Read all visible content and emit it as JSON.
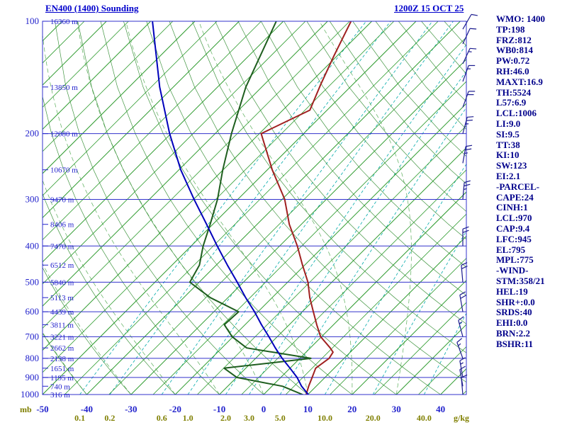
{
  "header": {
    "title": "EN400 (1400) Sounding",
    "datetime": "1200Z 15 OCT 25"
  },
  "axes": {
    "pressure_unit": "mb",
    "mixing_unit": "g/kg",
    "pressure_labels": [
      100,
      200,
      300,
      400,
      500,
      600,
      700,
      800,
      900,
      1000
    ],
    "temp_labels": [
      -50,
      -40,
      -30,
      -20,
      -10,
      0,
      10,
      20,
      30,
      40
    ],
    "mixing_labels": [
      "0.1",
      "0.2",
      "0.6",
      "1.0",
      "2.0",
      "3.0",
      "5.0",
      "10.0",
      "20.0",
      "40.0"
    ],
    "height_labels": [
      {
        "p": 100,
        "label": "16360 m"
      },
      {
        "p": 150,
        "label": "13850 m"
      },
      {
        "p": 200,
        "label": "12080 m"
      },
      {
        "p": 250,
        "label": "10670 m"
      },
      {
        "p": 300,
        "label": "9470 m"
      },
      {
        "p": 350,
        "label": "8406 m"
      },
      {
        "p": 400,
        "label": "7470 m"
      },
      {
        "p": 450,
        "label": "6512 m"
      },
      {
        "p": 500,
        "label": "5840 m"
      },
      {
        "p": 550,
        "label": "5113 m"
      },
      {
        "p": 600,
        "label": "4439 m"
      },
      {
        "p": 650,
        "label": "3811 m"
      },
      {
        "p": 700,
        "label": "3221 m"
      },
      {
        "p": 750,
        "label": "2662 m"
      },
      {
        "p": 800,
        "label": "2138 m"
      },
      {
        "p": 850,
        "label": "1651 m"
      },
      {
        "p": 900,
        "label": "1195 m"
      },
      {
        "p": 950,
        "label": "740 m"
      },
      {
        "p": 1000,
        "label": "316 m"
      }
    ]
  },
  "right_panel": {
    "items": [
      "WMO: 1400",
      "TP:198",
      "FRZ:812",
      "WB0:814",
      "PW:0.72",
      "RH:46.0",
      "MAXT:16.9",
      "TH:5524",
      "L57:6.9",
      "LCL:1006",
      "LI:9.0",
      "SI:9.5",
      "TT:38",
      "KI:10",
      "SW:123",
      "EI:2.1",
      "-PARCEL-",
      "CAPE:24",
      "CINH:1",
      "LCL:970",
      "CAP:9.4",
      "LFC:945",
      "EL:795",
      "MPL:775",
      "-WIND-",
      "STM:358/21",
      "HEL:19",
      "SHR+:0.0",
      "SRDS:40",
      "EHI:0.0",
      "BRN:2.2",
      "BSHR:11"
    ]
  },
  "chart_data": {
    "type": "skewt-sounding",
    "title": "EN400 (1400) Sounding",
    "valid_time": "1200Z 15 OCT 25",
    "pressure_axis_mb": [
      100,
      1000
    ],
    "temp_axis_c": [
      -50,
      46
    ],
    "colors": {
      "frame": "#3333cc",
      "pressure_line": "#3333cc",
      "isotherm": "#2e9b2e",
      "dry_adiabat": "#2e8b2e",
      "moist_adiabat": "#3da03d",
      "mixing_ratio": "#00aaaa",
      "temperature": "#a02020",
      "dewpoint": "#1e5e1e",
      "parcel": "#0000bb",
      "wind": "#1b1b8e",
      "text_blue": "#2222cc",
      "text_navy": "#00008b",
      "text_olive": "#7f7f00"
    },
    "series": [
      {
        "name": "temperature",
        "color": "#a02020",
        "points": [
          [
            1000,
            9.6
          ],
          [
            950,
            8.3
          ],
          [
            900,
            7.1
          ],
          [
            850,
            5.8
          ],
          [
            800,
            6.6
          ],
          [
            770,
            6.1
          ],
          [
            750,
            4.5
          ],
          [
            700,
            -0.2
          ],
          [
            650,
            -3.8
          ],
          [
            600,
            -7.5
          ],
          [
            550,
            -11.5
          ],
          [
            500,
            -15.4
          ],
          [
            450,
            -20.5
          ],
          [
            400,
            -26.0
          ],
          [
            350,
            -32.7
          ],
          [
            300,
            -39.4
          ],
          [
            250,
            -48.9
          ],
          [
            200,
            -59.6
          ],
          [
            173,
            -53.9
          ],
          [
            148,
            -57.2
          ],
          [
            124,
            -60.7
          ],
          [
            100,
            -64.7
          ]
        ]
      },
      {
        "name": "dewpoint",
        "color": "#1e5e1e",
        "points": [
          [
            1000,
            8.8
          ],
          [
            950,
            2.4
          ],
          [
            900,
            -9.9
          ],
          [
            850,
            -14.9
          ],
          [
            800,
            2.5
          ],
          [
            750,
            -14.4
          ],
          [
            700,
            -20.2
          ],
          [
            650,
            -24.7
          ],
          [
            600,
            -24.4
          ],
          [
            550,
            -34.0
          ],
          [
            500,
            -42.1
          ],
          [
            450,
            -43.8
          ],
          [
            400,
            -47.3
          ],
          [
            350,
            -50.6
          ],
          [
            300,
            -54.6
          ],
          [
            250,
            -60.1
          ],
          [
            200,
            -66.3
          ],
          [
            150,
            -73.6
          ],
          [
            100,
            -81.6
          ]
        ]
      },
      {
        "name": "parcel",
        "color": "#0000bb",
        "points": [
          [
            1000,
            10.1
          ],
          [
            950,
            6.7
          ],
          [
            900,
            3.7
          ],
          [
            850,
            0.0
          ],
          [
            800,
            -4.0
          ],
          [
            750,
            -7.9
          ],
          [
            700,
            -11.9
          ],
          [
            650,
            -16.3
          ],
          [
            600,
            -20.8
          ],
          [
            550,
            -26.0
          ],
          [
            500,
            -31.4
          ],
          [
            450,
            -37.5
          ],
          [
            400,
            -44.1
          ],
          [
            350,
            -51.4
          ],
          [
            300,
            -59.9
          ],
          [
            250,
            -69.6
          ],
          [
            200,
            -80.3
          ],
          [
            150,
            -93.1
          ],
          [
            100,
            -109.6
          ]
        ]
      }
    ],
    "wind_barbs": [
      {
        "p": 105,
        "dir": 30,
        "spd": 10
      },
      {
        "p": 115,
        "dir": 25,
        "spd": 10
      },
      {
        "p": 130,
        "dir": 25,
        "spd": 15
      },
      {
        "p": 145,
        "dir": 20,
        "spd": 15
      },
      {
        "p": 170,
        "dir": 20,
        "spd": 20
      },
      {
        "p": 200,
        "dir": 15,
        "spd": 25
      },
      {
        "p": 240,
        "dir": 10,
        "spd": 25
      },
      {
        "p": 300,
        "dir": 5,
        "spd": 25
      },
      {
        "p": 400,
        "dir": 0,
        "spd": 20
      },
      {
        "p": 500,
        "dir": 355,
        "spd": 20
      },
      {
        "p": 600,
        "dir": 350,
        "spd": 20
      },
      {
        "p": 700,
        "dir": 345,
        "spd": 15
      },
      {
        "p": 800,
        "dir": 340,
        "spd": 15
      },
      {
        "p": 900,
        "dir": 350,
        "spd": 15
      },
      {
        "p": 950,
        "dir": 350,
        "spd": 10
      },
      {
        "p": 1000,
        "dir": 355,
        "spd": 10
      }
    ]
  }
}
